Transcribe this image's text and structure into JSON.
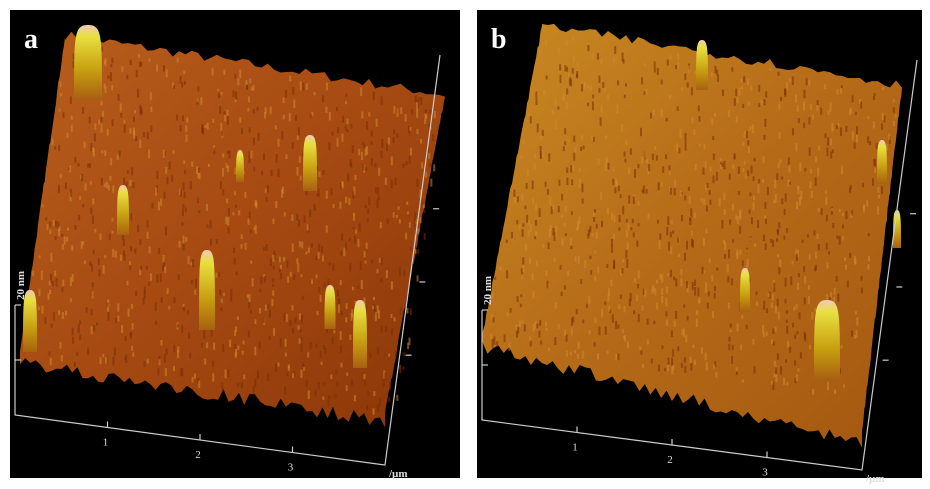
{
  "panels": [
    {
      "label": "a",
      "z_scale": "20 nm",
      "x_ticks": [
        "1",
        "2",
        "3"
      ],
      "x_unit": "/µm"
    },
    {
      "label": "b",
      "z_scale": "20 nm",
      "x_ticks": [
        "1",
        "2",
        "3"
      ],
      "x_unit": "/µm"
    }
  ]
}
